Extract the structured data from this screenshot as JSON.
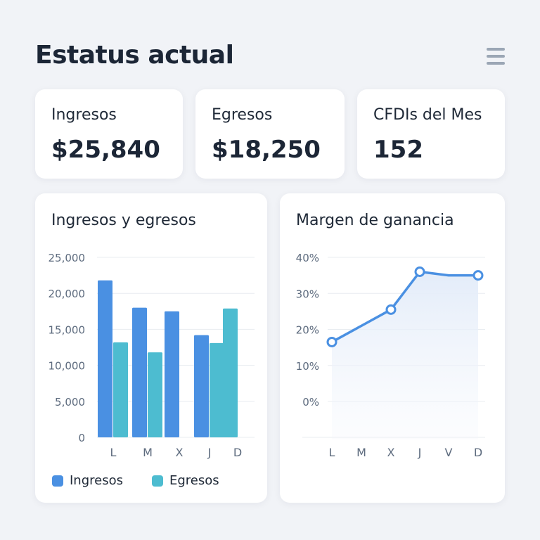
{
  "header": {
    "title": "Estatus actual",
    "menu_icon": "hamburger-menu-icon"
  },
  "stats": [
    {
      "label": "Ingresos",
      "value": "$25,840"
    },
    {
      "label": "Egresos",
      "value": "$18,250"
    },
    {
      "label": "CFDIs del Mes",
      "value": "152"
    }
  ],
  "colors": {
    "ingresos": "#4a90e2",
    "egresos": "#4dbcd0",
    "line": "#4a90e2",
    "background": "#f1f3f7"
  },
  "chart_data": [
    {
      "type": "bar",
      "title": "Ingresos y egresos",
      "categories": [
        "L",
        "M",
        "X",
        "J",
        "D"
      ],
      "series": [
        {
          "name": "Ingresos",
          "values": [
            21800,
            18000,
            17500,
            14200,
            null
          ]
        },
        {
          "name": "Egresos",
          "values": [
            13200,
            11800,
            null,
            13100,
            17900
          ]
        }
      ],
      "ylim": [
        0,
        25000
      ],
      "yticks": [
        "0",
        "5,000",
        "10,000",
        "15,000",
        "20,000",
        "25,000"
      ],
      "grid": true,
      "legend": "bottom"
    },
    {
      "type": "area",
      "title": "Margen de ganancia",
      "categories": [
        "L",
        "M",
        "X",
        "J",
        "V",
        "D"
      ],
      "series": [
        {
          "values": [
            16.5,
            21,
            25.5,
            36,
            35,
            35
          ]
        }
      ],
      "markers": [
        0,
        2,
        3,
        5
      ],
      "ylim": [
        0,
        40
      ],
      "yticks": [
        "0%",
        "10%",
        "20%",
        "30%",
        "40%"
      ],
      "grid": true
    }
  ]
}
